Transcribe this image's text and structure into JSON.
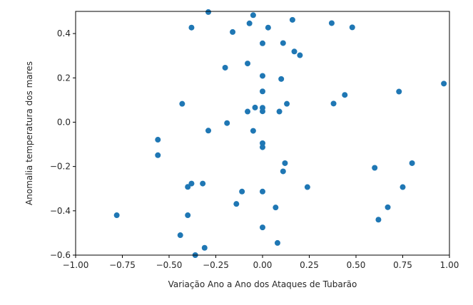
{
  "chart_data": {
    "type": "scatter",
    "title": "",
    "xlabel": "Variação Ano a Ano dos Ataques de Tubarão",
    "ylabel": "Anomalia temperatura dos mares",
    "xlim": [
      -1.0,
      1.0
    ],
    "ylim": [
      -0.6,
      0.5
    ],
    "xticks": [
      "−1.00",
      "−0.75",
      "−0.50",
      "−0.25",
      "0.00",
      "0.25",
      "0.50",
      "0.75",
      "1.00"
    ],
    "xtick_values": [
      -1.0,
      -0.75,
      -0.5,
      -0.25,
      0.0,
      0.25,
      0.5,
      0.75,
      1.0
    ],
    "yticks": [
      "−0.6",
      "−0.4",
      "−0.2",
      "0.0",
      "0.2",
      "0.4"
    ],
    "ytick_values": [
      -0.6,
      -0.4,
      -0.2,
      0.0,
      0.2,
      0.4
    ],
    "grid": false,
    "marker_color": "#1f77b4",
    "points": [
      {
        "x": -0.29,
        "y": 0.497
      },
      {
        "x": -0.05,
        "y": 0.483
      },
      {
        "x": 0.16,
        "y": 0.462
      },
      {
        "x": 0.37,
        "y": 0.447
      },
      {
        "x": -0.07,
        "y": 0.446
      },
      {
        "x": -0.38,
        "y": 0.427
      },
      {
        "x": 0.48,
        "y": 0.428
      },
      {
        "x": 0.03,
        "y": 0.427
      },
      {
        "x": -0.16,
        "y": 0.407
      },
      {
        "x": 0.0,
        "y": 0.356
      },
      {
        "x": 0.11,
        "y": 0.357
      },
      {
        "x": 0.17,
        "y": 0.319
      },
      {
        "x": 0.2,
        "y": 0.302
      },
      {
        "x": -0.08,
        "y": 0.265
      },
      {
        "x": -0.2,
        "y": 0.246
      },
      {
        "x": 0.0,
        "y": 0.209
      },
      {
        "x": 0.1,
        "y": 0.195
      },
      {
        "x": 0.97,
        "y": 0.174
      },
      {
        "x": 0.0,
        "y": 0.139
      },
      {
        "x": 0.73,
        "y": 0.138
      },
      {
        "x": 0.44,
        "y": 0.123
      },
      {
        "x": -0.43,
        "y": 0.083
      },
      {
        "x": 0.13,
        "y": 0.083
      },
      {
        "x": 0.38,
        "y": 0.084
      },
      {
        "x": -0.04,
        "y": 0.066
      },
      {
        "x": 0.0,
        "y": 0.065
      },
      {
        "x": -0.08,
        "y": 0.048
      },
      {
        "x": 0.0,
        "y": 0.049
      },
      {
        "x": 0.09,
        "y": 0.048
      },
      {
        "x": -0.19,
        "y": -0.004
      },
      {
        "x": -0.29,
        "y": -0.038
      },
      {
        "x": -0.05,
        "y": -0.039
      },
      {
        "x": -0.56,
        "y": -0.079
      },
      {
        "x": 0.0,
        "y": -0.095
      },
      {
        "x": 0.0,
        "y": -0.113
      },
      {
        "x": -0.56,
        "y": -0.149
      },
      {
        "x": 0.12,
        "y": -0.185
      },
      {
        "x": 0.8,
        "y": -0.185
      },
      {
        "x": 0.6,
        "y": -0.206
      },
      {
        "x": 0.11,
        "y": -0.222
      },
      {
        "x": -0.38,
        "y": -0.277
      },
      {
        "x": -0.32,
        "y": -0.277
      },
      {
        "x": -0.4,
        "y": -0.292
      },
      {
        "x": 0.24,
        "y": -0.293
      },
      {
        "x": 0.75,
        "y": -0.293
      },
      {
        "x": -0.11,
        "y": -0.313
      },
      {
        "x": 0.0,
        "y": -0.313
      },
      {
        "x": -0.14,
        "y": -0.369
      },
      {
        "x": 0.07,
        "y": -0.385
      },
      {
        "x": 0.67,
        "y": -0.384
      },
      {
        "x": -0.78,
        "y": -0.42
      },
      {
        "x": -0.4,
        "y": -0.42
      },
      {
        "x": 0.62,
        "y": -0.44
      },
      {
        "x": 0.0,
        "y": -0.475
      },
      {
        "x": -0.44,
        "y": -0.51
      },
      {
        "x": 0.08,
        "y": -0.545
      },
      {
        "x": -0.31,
        "y": -0.567
      },
      {
        "x": -0.36,
        "y": -0.6
      }
    ]
  }
}
